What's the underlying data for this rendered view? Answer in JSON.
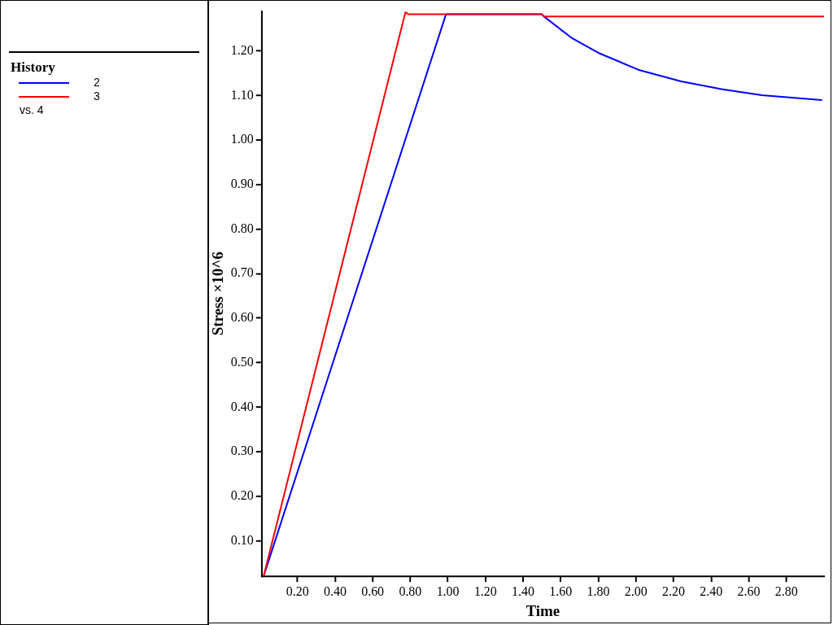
{
  "chart_data": {
    "type": "line",
    "xlabel": "Time",
    "ylabel": "Stress ×10^6",
    "legend_title": "History",
    "legend": "left",
    "grid": false,
    "marker": "none",
    "line_style": "solid",
    "annotations": [
      "vs. 4"
    ],
    "xlim": [
      0.01,
      3.0
    ],
    "ylim": [
      0.02,
      1.29
    ],
    "xticks": [
      {
        "value": 0.2,
        "label": "0.20"
      },
      {
        "value": 0.4,
        "label": "0.40"
      },
      {
        "value": 0.6,
        "label": "0.60"
      },
      {
        "value": 0.8,
        "label": "0.80"
      },
      {
        "value": 1.0,
        "label": "1.00"
      },
      {
        "value": 1.2,
        "label": "1.20"
      },
      {
        "value": 1.4,
        "label": "1.40"
      },
      {
        "value": 1.6,
        "label": "1.60"
      },
      {
        "value": 1.8,
        "label": "1.80"
      },
      {
        "value": 2.0,
        "label": "2.00"
      },
      {
        "value": 2.2,
        "label": "2.20"
      },
      {
        "value": 2.4,
        "label": "2.40"
      },
      {
        "value": 2.6,
        "label": "2.60"
      },
      {
        "value": 2.8,
        "label": "2.80"
      }
    ],
    "yticks": [
      {
        "value": 0.1,
        "label": "0.10"
      },
      {
        "value": 0.2,
        "label": "0.20"
      },
      {
        "value": 0.3,
        "label": "0.30"
      },
      {
        "value": 0.4,
        "label": "0.40"
      },
      {
        "value": 0.5,
        "label": "0.50"
      },
      {
        "value": 0.6,
        "label": "0.60"
      },
      {
        "value": 0.7,
        "label": "0.70"
      },
      {
        "value": 0.8,
        "label": "0.80"
      },
      {
        "value": 0.9,
        "label": "0.90"
      },
      {
        "value": 1.0,
        "label": "1.00"
      },
      {
        "value": 1.1,
        "label": "1.10"
      },
      {
        "value": 1.2,
        "label": "1.20"
      }
    ],
    "series": [
      {
        "name": "2",
        "color": "#0000ff",
        "x": [
          0.02,
          0.99,
          1.5,
          1.51,
          1.66,
          1.8,
          2.02,
          2.24,
          2.46,
          2.67,
          2.99
        ],
        "values": [
          0.02,
          1.283,
          1.283,
          1.278,
          1.229,
          1.196,
          1.157,
          1.132,
          1.114,
          1.101,
          1.09
        ]
      },
      {
        "name": "3",
        "color": "#ff0000",
        "x": [
          0.02,
          0.774,
          0.79,
          1.5,
          1.51,
          3.0
        ],
        "values": [
          0.02,
          1.287,
          1.283,
          1.283,
          1.278,
          1.278
        ]
      }
    ]
  }
}
